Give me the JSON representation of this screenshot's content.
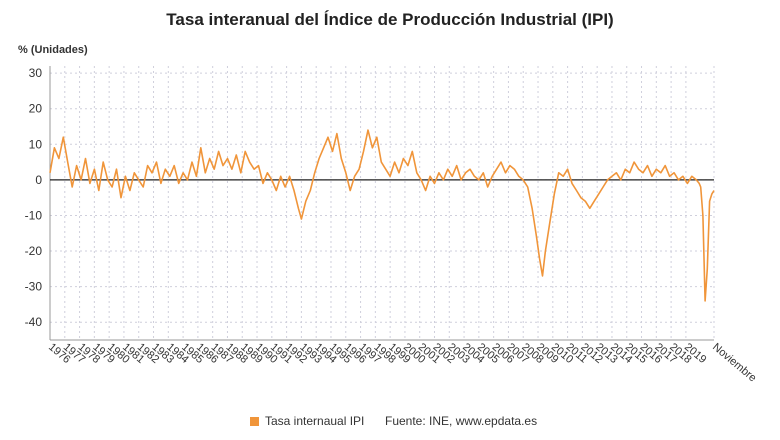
{
  "title": "Tasa interanual del Índice de Producción Industrial (IPI)",
  "unit_label": "% (Unidades)",
  "legend_label": "Tasa internaual IPI",
  "source_text": "Fuente: INE, www.epdata.es",
  "end_label": "Noviembre",
  "series_color": "#f0953a",
  "chart_data": {
    "type": "line",
    "title": "Tasa interanual del Índice de Producción Industrial (IPI)",
    "ylabel": "% (Unidades)",
    "xlabel": "",
    "ylim": [
      -45,
      32
    ],
    "yticks": [
      30,
      20,
      10,
      0,
      -10,
      -20,
      -30,
      -40
    ],
    "grid": true,
    "legend_position": "bottom",
    "x_tick_labels": [
      "1976",
      "1977",
      "1978",
      "1979",
      "1980",
      "1981",
      "1982",
      "1983",
      "1984",
      "1985",
      "1986",
      "1987",
      "1988",
      "1989",
      "1990",
      "1991",
      "1992",
      "1993",
      "1994",
      "1995",
      "1996",
      "1997",
      "1998",
      "1999",
      "2000",
      "2001",
      "2002",
      "2003",
      "2004",
      "2005",
      "2006",
      "2007",
      "2008",
      "2009",
      "2010",
      "2011",
      "2012",
      "2013",
      "2014",
      "2015",
      "2016",
      "2017",
      "2018",
      "2019",
      "Noviembre"
    ],
    "series": [
      {
        "name": "Tasa internaual IPI",
        "points": [
          [
            1976.0,
            2
          ],
          [
            1976.3,
            9
          ],
          [
            1976.6,
            6
          ],
          [
            1976.9,
            12
          ],
          [
            1977.2,
            5
          ],
          [
            1977.5,
            -2
          ],
          [
            1977.8,
            4
          ],
          [
            1978.1,
            0
          ],
          [
            1978.4,
            6
          ],
          [
            1978.7,
            -1
          ],
          [
            1979.0,
            3
          ],
          [
            1979.3,
            -3
          ],
          [
            1979.6,
            5
          ],
          [
            1979.9,
            0
          ],
          [
            1980.2,
            -2
          ],
          [
            1980.5,
            3
          ],
          [
            1980.8,
            -5
          ],
          [
            1981.1,
            1
          ],
          [
            1981.4,
            -3
          ],
          [
            1981.7,
            2
          ],
          [
            1982.0,
            0
          ],
          [
            1982.3,
            -2
          ],
          [
            1982.6,
            4
          ],
          [
            1982.9,
            2
          ],
          [
            1983.2,
            5
          ],
          [
            1983.5,
            -1
          ],
          [
            1983.8,
            3
          ],
          [
            1984.1,
            1
          ],
          [
            1984.4,
            4
          ],
          [
            1984.7,
            -1
          ],
          [
            1985.0,
            2
          ],
          [
            1985.3,
            0
          ],
          [
            1985.6,
            5
          ],
          [
            1985.9,
            1
          ],
          [
            1986.2,
            9
          ],
          [
            1986.5,
            2
          ],
          [
            1986.8,
            6
          ],
          [
            1987.1,
            3
          ],
          [
            1987.4,
            8
          ],
          [
            1987.7,
            4
          ],
          [
            1988.0,
            6
          ],
          [
            1988.3,
            3
          ],
          [
            1988.6,
            7
          ],
          [
            1988.9,
            2
          ],
          [
            1989.2,
            8
          ],
          [
            1989.5,
            5
          ],
          [
            1989.8,
            3
          ],
          [
            1990.1,
            4
          ],
          [
            1990.4,
            -1
          ],
          [
            1990.7,
            2
          ],
          [
            1991.0,
            0
          ],
          [
            1991.3,
            -3
          ],
          [
            1991.6,
            1
          ],
          [
            1991.9,
            -2
          ],
          [
            1992.2,
            1
          ],
          [
            1992.5,
            -3
          ],
          [
            1992.8,
            -8
          ],
          [
            1993.0,
            -11
          ],
          [
            1993.3,
            -6
          ],
          [
            1993.6,
            -3
          ],
          [
            1993.9,
            2
          ],
          [
            1994.2,
            6
          ],
          [
            1994.5,
            9
          ],
          [
            1994.8,
            12
          ],
          [
            1995.1,
            8
          ],
          [
            1995.4,
            13
          ],
          [
            1995.7,
            6
          ],
          [
            1996.0,
            2
          ],
          [
            1996.3,
            -3
          ],
          [
            1996.6,
            1
          ],
          [
            1996.9,
            3
          ],
          [
            1997.2,
            8
          ],
          [
            1997.5,
            14
          ],
          [
            1997.8,
            9
          ],
          [
            1998.1,
            12
          ],
          [
            1998.4,
            5
          ],
          [
            1998.7,
            3
          ],
          [
            1999.0,
            1
          ],
          [
            1999.3,
            5
          ],
          [
            1999.6,
            2
          ],
          [
            1999.9,
            6
          ],
          [
            2000.2,
            4
          ],
          [
            2000.5,
            8
          ],
          [
            2000.8,
            2
          ],
          [
            2001.1,
            0
          ],
          [
            2001.4,
            -3
          ],
          [
            2001.7,
            1
          ],
          [
            2002.0,
            -1
          ],
          [
            2002.3,
            2
          ],
          [
            2002.6,
            0
          ],
          [
            2002.9,
            3
          ],
          [
            2003.2,
            1
          ],
          [
            2003.5,
            4
          ],
          [
            2003.8,
            0
          ],
          [
            2004.1,
            2
          ],
          [
            2004.4,
            3
          ],
          [
            2004.7,
            1
          ],
          [
            2005.0,
            0
          ],
          [
            2005.3,
            2
          ],
          [
            2005.6,
            -2
          ],
          [
            2005.9,
            1
          ],
          [
            2006.2,
            3
          ],
          [
            2006.5,
            5
          ],
          [
            2006.8,
            2
          ],
          [
            2007.1,
            4
          ],
          [
            2007.4,
            3
          ],
          [
            2007.7,
            1
          ],
          [
            2008.0,
            0
          ],
          [
            2008.3,
            -2
          ],
          [
            2008.6,
            -8
          ],
          [
            2008.9,
            -16
          ],
          [
            2009.1,
            -22
          ],
          [
            2009.3,
            -27
          ],
          [
            2009.5,
            -20
          ],
          [
            2009.8,
            -12
          ],
          [
            2010.1,
            -4
          ],
          [
            2010.4,
            2
          ],
          [
            2010.7,
            1
          ],
          [
            2011.0,
            3
          ],
          [
            2011.3,
            -1
          ],
          [
            2011.6,
            -3
          ],
          [
            2011.9,
            -5
          ],
          [
            2012.2,
            -6
          ],
          [
            2012.5,
            -8
          ],
          [
            2012.8,
            -6
          ],
          [
            2013.1,
            -4
          ],
          [
            2013.4,
            -2
          ],
          [
            2013.7,
            0
          ],
          [
            2014.0,
            1
          ],
          [
            2014.3,
            2
          ],
          [
            2014.6,
            0
          ],
          [
            2014.9,
            3
          ],
          [
            2015.2,
            2
          ],
          [
            2015.5,
            5
          ],
          [
            2015.8,
            3
          ],
          [
            2016.1,
            2
          ],
          [
            2016.4,
            4
          ],
          [
            2016.7,
            1
          ],
          [
            2017.0,
            3
          ],
          [
            2017.3,
            2
          ],
          [
            2017.6,
            4
          ],
          [
            2017.9,
            1
          ],
          [
            2018.2,
            2
          ],
          [
            2018.5,
            0
          ],
          [
            2018.8,
            1
          ],
          [
            2019.1,
            -1
          ],
          [
            2019.4,
            1
          ],
          [
            2019.7,
            0
          ],
          [
            2019.9,
            -1
          ],
          [
            2020.0,
            -2
          ],
          [
            2020.15,
            -10
          ],
          [
            2020.3,
            -34
          ],
          [
            2020.45,
            -25
          ],
          [
            2020.6,
            -6
          ],
          [
            2020.75,
            -4
          ],
          [
            2020.9,
            -3
          ]
        ]
      }
    ]
  }
}
